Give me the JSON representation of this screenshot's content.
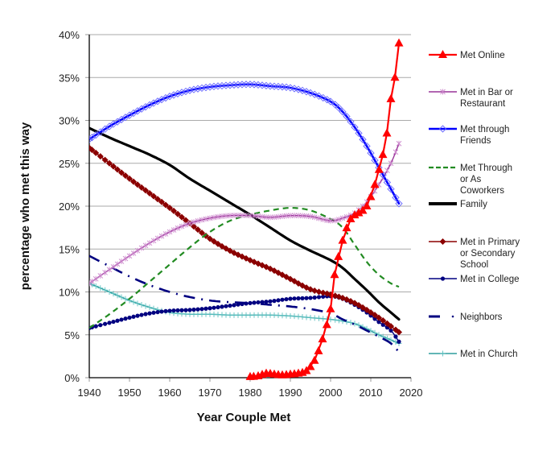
{
  "chart_data": {
    "type": "line",
    "title": "",
    "xlabel": "Year Couple Met",
    "ylabel": "percentage who met this way",
    "xlim": [
      1940,
      2020
    ],
    "ylim": [
      0,
      40
    ],
    "grid": true,
    "legend_position": "right",
    "x_ticks": [
      "1940",
      "1950",
      "1960",
      "1970",
      "1980",
      "1990",
      "2000",
      "2010",
      "2020"
    ],
    "y_ticks": [
      "0%",
      "5%",
      "10%",
      "15%",
      "20%",
      "25%",
      "30%",
      "35%",
      "40%"
    ],
    "series": [
      {
        "name": "Met Online",
        "legend_lines": [
          "Met Online"
        ],
        "color": "#ff0000",
        "style": "solid",
        "marker": "triangle",
        "points": [
          [
            1980,
            0.1
          ],
          [
            1982,
            0.2
          ],
          [
            1984,
            0.5
          ],
          [
            1986,
            0.4
          ],
          [
            1988,
            0.3
          ],
          [
            1990,
            0.4
          ],
          [
            1992,
            0.5
          ],
          [
            1994,
            0.8
          ],
          [
            1996,
            2.0
          ],
          [
            1998,
            4.5
          ],
          [
            2000,
            8.0
          ],
          [
            2001,
            12.0
          ],
          [
            2003,
            16.0
          ],
          [
            2005,
            18.5
          ],
          [
            2007,
            19.2
          ],
          [
            2009,
            20.0
          ],
          [
            2011,
            22.5
          ],
          [
            2013,
            26.0
          ],
          [
            2014,
            28.5
          ],
          [
            2015,
            32.5
          ],
          [
            2016,
            35.0
          ],
          [
            2017,
            39.0
          ]
        ]
      },
      {
        "name": "Met in Bar or Restaurant",
        "legend_lines": [
          "Met in Bar or",
          "Restaurant"
        ],
        "color": "#993399",
        "style": "solid",
        "marker": "asterisk",
        "points": [
          [
            1940,
            11.0
          ],
          [
            1945,
            12.6
          ],
          [
            1950,
            14.2
          ],
          [
            1955,
            15.7
          ],
          [
            1960,
            17.0
          ],
          [
            1965,
            18.0
          ],
          [
            1970,
            18.6
          ],
          [
            1975,
            18.9
          ],
          [
            1980,
            18.9
          ],
          [
            1985,
            18.7
          ],
          [
            1990,
            18.9
          ],
          [
            1995,
            18.8
          ],
          [
            2000,
            18.3
          ],
          [
            2003,
            18.6
          ],
          [
            2006,
            19.2
          ],
          [
            2009,
            20.5
          ],
          [
            2012,
            22.5
          ],
          [
            2015,
            25.0
          ],
          [
            2017,
            27.3
          ]
        ]
      },
      {
        "name": "Met through Friends",
        "legend_lines": [
          "Met through",
          "Friends"
        ],
        "color": "#0000ff",
        "style": "solid",
        "marker": "diamond",
        "points": [
          [
            1940,
            27.8
          ],
          [
            1945,
            29.3
          ],
          [
            1950,
            30.6
          ],
          [
            1955,
            31.8
          ],
          [
            1960,
            32.8
          ],
          [
            1965,
            33.5
          ],
          [
            1970,
            33.9
          ],
          [
            1975,
            34.1
          ],
          [
            1980,
            34.2
          ],
          [
            1985,
            34.0
          ],
          [
            1990,
            33.8
          ],
          [
            1995,
            33.2
          ],
          [
            2000,
            32.2
          ],
          [
            2003,
            31.0
          ],
          [
            2006,
            29.2
          ],
          [
            2009,
            27.0
          ],
          [
            2012,
            24.5
          ],
          [
            2015,
            22.0
          ],
          [
            2017,
            20.3
          ]
        ]
      },
      {
        "name": "Met Through or As Coworkers",
        "legend_lines": [
          "Met Through",
          "or As",
          "Coworkers"
        ],
        "color": "#228b22",
        "style": "dashed",
        "marker": "none",
        "points": [
          [
            1940,
            5.8
          ],
          [
            1945,
            7.4
          ],
          [
            1950,
            9.2
          ],
          [
            1955,
            11.2
          ],
          [
            1960,
            13.2
          ],
          [
            1965,
            15.2
          ],
          [
            1970,
            17.0
          ],
          [
            1975,
            18.3
          ],
          [
            1980,
            19.0
          ],
          [
            1985,
            19.5
          ],
          [
            1990,
            19.8
          ],
          [
            1995,
            19.5
          ],
          [
            2000,
            18.5
          ],
          [
            2003,
            17.5
          ],
          [
            2006,
            15.5
          ],
          [
            2009,
            13.5
          ],
          [
            2012,
            12.0
          ],
          [
            2015,
            11.0
          ],
          [
            2017,
            10.6
          ]
        ]
      },
      {
        "name": "Family",
        "legend_lines": [
          "Family"
        ],
        "color": "#000000",
        "style": "solid-thick",
        "marker": "none",
        "points": [
          [
            1940,
            29.1
          ],
          [
            1945,
            28.0
          ],
          [
            1950,
            27.0
          ],
          [
            1955,
            26.0
          ],
          [
            1960,
            24.8
          ],
          [
            1965,
            23.2
          ],
          [
            1970,
            21.8
          ],
          [
            1975,
            20.4
          ],
          [
            1980,
            19.0
          ],
          [
            1985,
            17.5
          ],
          [
            1990,
            16.0
          ],
          [
            1995,
            14.8
          ],
          [
            2000,
            13.7
          ],
          [
            2003,
            12.8
          ],
          [
            2006,
            11.5
          ],
          [
            2009,
            10.2
          ],
          [
            2012,
            8.8
          ],
          [
            2015,
            7.6
          ],
          [
            2017,
            6.8
          ]
        ]
      },
      {
        "name": "Met in Primary or Secondary School",
        "legend_lines": [
          "Met in Primary",
          "or Secondary",
          "School"
        ],
        "color": "#8b0000",
        "style": "solid",
        "marker": "filled-diamond",
        "points": [
          [
            1940,
            26.8
          ],
          [
            1945,
            25.0
          ],
          [
            1950,
            23.2
          ],
          [
            1955,
            21.5
          ],
          [
            1960,
            19.8
          ],
          [
            1965,
            18.0
          ],
          [
            1970,
            16.2
          ],
          [
            1975,
            14.8
          ],
          [
            1980,
            13.7
          ],
          [
            1985,
            12.7
          ],
          [
            1990,
            11.5
          ],
          [
            1995,
            10.3
          ],
          [
            2000,
            9.7
          ],
          [
            2003,
            9.3
          ],
          [
            2006,
            8.7
          ],
          [
            2009,
            7.9
          ],
          [
            2012,
            7.0
          ],
          [
            2015,
            6.0
          ],
          [
            2017,
            5.3
          ]
        ]
      },
      {
        "name": "Met in College",
        "legend_lines": [
          "Met in College"
        ],
        "color": "#000080",
        "style": "solid",
        "marker": "dot",
        "points": [
          [
            1940,
            5.8
          ],
          [
            1945,
            6.4
          ],
          [
            1950,
            7.0
          ],
          [
            1955,
            7.5
          ],
          [
            1960,
            7.8
          ],
          [
            1965,
            7.9
          ],
          [
            1970,
            8.1
          ],
          [
            1975,
            8.4
          ],
          [
            1980,
            8.7
          ],
          [
            1985,
            8.9
          ],
          [
            1990,
            9.2
          ],
          [
            1995,
            9.3
          ],
          [
            2000,
            9.5
          ],
          [
            2003,
            9.2
          ],
          [
            2006,
            8.5
          ],
          [
            2009,
            7.6
          ],
          [
            2012,
            6.5
          ],
          [
            2015,
            5.5
          ],
          [
            2017,
            4.2
          ]
        ]
      },
      {
        "name": "Neighbors",
        "legend_lines": [
          "Neighbors"
        ],
        "color": "#000080",
        "style": "dash-dot",
        "marker": "none",
        "points": [
          [
            1940,
            14.2
          ],
          [
            1945,
            13.0
          ],
          [
            1950,
            11.8
          ],
          [
            1955,
            10.8
          ],
          [
            1960,
            10.0
          ],
          [
            1965,
            9.4
          ],
          [
            1970,
            9.0
          ],
          [
            1975,
            8.8
          ],
          [
            1980,
            8.7
          ],
          [
            1985,
            8.5
          ],
          [
            1990,
            8.3
          ],
          [
            1995,
            8.0
          ],
          [
            2000,
            7.5
          ],
          [
            2003,
            6.8
          ],
          [
            2006,
            6.2
          ],
          [
            2009,
            5.5
          ],
          [
            2012,
            4.8
          ],
          [
            2015,
            4.0
          ],
          [
            2017,
            3.0
          ]
        ]
      },
      {
        "name": "Met in Church",
        "legend_lines": [
          "Met in Church"
        ],
        "color": "#2e9e9e",
        "style": "solid",
        "marker": "plus",
        "points": [
          [
            1940,
            11.0
          ],
          [
            1945,
            10.0
          ],
          [
            1950,
            9.0
          ],
          [
            1955,
            8.2
          ],
          [
            1960,
            7.6
          ],
          [
            1965,
            7.4
          ],
          [
            1970,
            7.4
          ],
          [
            1975,
            7.3
          ],
          [
            1980,
            7.3
          ],
          [
            1985,
            7.3
          ],
          [
            1990,
            7.2
          ],
          [
            1995,
            7.0
          ],
          [
            2000,
            6.8
          ],
          [
            2003,
            6.6
          ],
          [
            2006,
            6.3
          ],
          [
            2009,
            5.7
          ],
          [
            2012,
            5.0
          ],
          [
            2015,
            4.4
          ],
          [
            2017,
            4.0
          ]
        ]
      }
    ]
  }
}
